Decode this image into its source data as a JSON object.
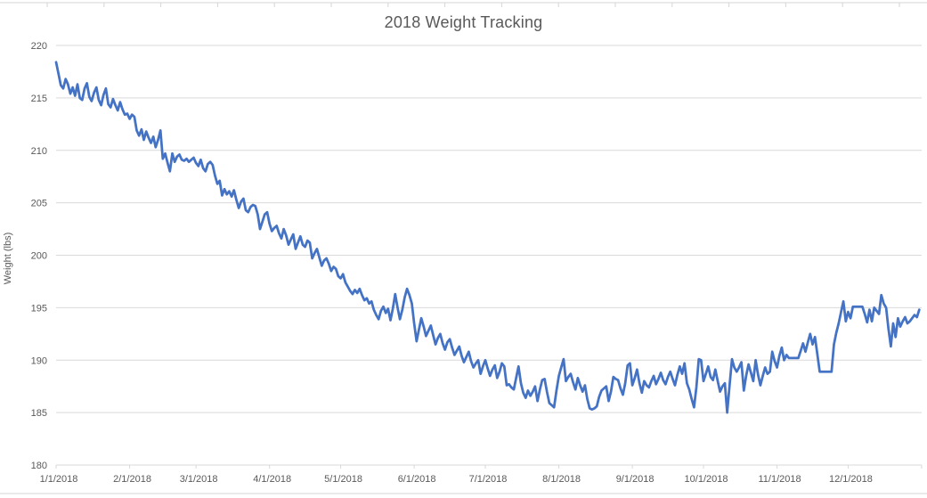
{
  "chart_data": {
    "type": "line",
    "title": "2018 Weight Tracking",
    "xlabel": "",
    "ylabel": "Weight (lbs)",
    "ylim": [
      180,
      220
    ],
    "y_tick_interval": 5,
    "y_tick_labels": [
      "220",
      "215",
      "210",
      "205",
      "200",
      "195",
      "190",
      "185",
      "180"
    ],
    "x_tick_labels": [
      "1/1/2018",
      "2/1/2018",
      "3/1/2018",
      "4/1/2018",
      "5/1/2018",
      "6/1/2018",
      "7/1/2018",
      "8/1/2018",
      "9/1/2018",
      "10/1/2018",
      "11/1/2018",
      "12/1/2018"
    ],
    "x_tick_days": [
      0,
      31,
      59,
      90,
      120,
      151,
      181,
      212,
      243,
      273,
      304,
      334
    ],
    "x_axis_total_days": 365,
    "grid": true,
    "legend": "none",
    "colors": {
      "series_line": "#4472C4",
      "gridline": "#D9D9D9",
      "axis_line": "#D9D9D9",
      "axis_text": "#595959",
      "worksheet_gridline": "#D6D6D6",
      "plot_background": "#FFFFFF"
    },
    "series": [
      {
        "name": "Weight",
        "start_date": "1/1/2018",
        "frequency": "daily",
        "daily_values": [
          218.4,
          217.3,
          216.2,
          215.9,
          216.8,
          216.3,
          215.4,
          216.0,
          215.2,
          216.3,
          215.0,
          214.8,
          215.9,
          216.4,
          215.1,
          214.7,
          215.5,
          216.0,
          214.8,
          214.3,
          215.3,
          215.9,
          214.4,
          214.1,
          214.9,
          214.3,
          213.8,
          214.6,
          213.9,
          213.4,
          213.5,
          213.0,
          213.4,
          213.2,
          211.9,
          211.4,
          212.0,
          211.0,
          211.8,
          211.2,
          210.7,
          211.3,
          210.3,
          211.0,
          211.9,
          209.2,
          209.7,
          208.8,
          208.0,
          209.7,
          208.9,
          209.4,
          209.6,
          209.1,
          209.0,
          209.2,
          208.9,
          209.1,
          209.3,
          208.8,
          208.5,
          209.1,
          208.3,
          208.0,
          208.7,
          208.9,
          208.6,
          207.6,
          206.8,
          207.1,
          205.7,
          206.3,
          205.8,
          206.1,
          205.6,
          206.2,
          205.3,
          204.5,
          205.1,
          205.4,
          204.3,
          204.1,
          204.6,
          204.8,
          204.7,
          203.9,
          202.5,
          203.2,
          203.9,
          204.1,
          203.0,
          202.3,
          202.6,
          202.8,
          202.1,
          201.6,
          202.5,
          201.9,
          201.0,
          201.5,
          202.0,
          200.6,
          201.2,
          201.8,
          201.0,
          200.8,
          201.4,
          201.2,
          199.7,
          200.2,
          200.6,
          199.8,
          199.0,
          199.5,
          199.7,
          199.2,
          198.5,
          198.9,
          198.7,
          198.0,
          197.8,
          198.2,
          197.4,
          197.0,
          196.6,
          196.3,
          196.7,
          196.4,
          196.8,
          196.2,
          195.7,
          195.9,
          195.4,
          195.6,
          194.8,
          194.3,
          193.9,
          194.7,
          195.1,
          194.5,
          194.9,
          193.8,
          194.9,
          196.3,
          195.0,
          193.9,
          194.8,
          196.0,
          196.8,
          196.2,
          195.4,
          193.5,
          191.8,
          192.9,
          194.0,
          193.2,
          192.3,
          192.8,
          193.3,
          192.4,
          191.5,
          192.1,
          192.5,
          191.6,
          191.0,
          191.7,
          192.0,
          191.2,
          190.5,
          190.9,
          191.3,
          190.4,
          189.8,
          190.3,
          190.8,
          189.9,
          189.3,
          189.7,
          190.0,
          188.7,
          189.4,
          190.0,
          189.2,
          188.5,
          189.1,
          189.5,
          188.3,
          188.9,
          189.7,
          189.4,
          187.6,
          187.7,
          187.4,
          187.2,
          188.3,
          189.4,
          187.8,
          186.9,
          186.4,
          187.1,
          186.6,
          187.0,
          187.5,
          186.1,
          187.2,
          188.1,
          188.2,
          187.0,
          185.9,
          185.7,
          185.5,
          187.1,
          188.5,
          189.3,
          190.1,
          188.0,
          188.4,
          188.7,
          187.9,
          187.2,
          188.3,
          187.6,
          187.0,
          187.6,
          186.3,
          185.4,
          185.3,
          185.4,
          185.6,
          186.5,
          187.1,
          187.3,
          187.5,
          186.1,
          187.0,
          188.4,
          188.2,
          188.1,
          187.3,
          186.7,
          187.8,
          189.5,
          189.7,
          187.6,
          188.3,
          189.1,
          187.8,
          186.9,
          188.0,
          187.6,
          187.4,
          188.0,
          188.5,
          187.7,
          188.2,
          188.8,
          188.1,
          187.7,
          188.4,
          188.9,
          188.2,
          187.6,
          188.6,
          189.4,
          188.7,
          189.7,
          187.8,
          187.2,
          186.3,
          185.5,
          187.4,
          190.1,
          190.0,
          188.0,
          188.7,
          189.4,
          188.4,
          188.1,
          189.1,
          188.0,
          187.0,
          187.5,
          187.8,
          185.0,
          187.6,
          190.1,
          189.3,
          188.9,
          189.3,
          189.8,
          187.1,
          188.5,
          189.6,
          188.8,
          188.0,
          190.0,
          188.6,
          187.6,
          188.5,
          189.3,
          188.7,
          188.9,
          190.8,
          189.9,
          189.3,
          190.4,
          191.2,
          190.0,
          190.5,
          190.2,
          190.2,
          190.2,
          190.2,
          190.2,
          190.9,
          191.6,
          190.8,
          191.7,
          192.5,
          191.5,
          192.2,
          190.6,
          188.9,
          188.9,
          188.9,
          188.9,
          188.9,
          188.9,
          191.5,
          192.6,
          193.5,
          194.6,
          195.6,
          193.7,
          194.6,
          194.0,
          195.1,
          195.1,
          195.1,
          195.1,
          195.1,
          194.4,
          193.6,
          194.8,
          193.7,
          195.0,
          194.7,
          194.4,
          196.2,
          195.4,
          195.0,
          193.0,
          191.3,
          193.5,
          192.2,
          194.0,
          193.2,
          193.7,
          194.1,
          193.5,
          193.7,
          194.0,
          194.3,
          194.1,
          194.8
        ]
      }
    ]
  }
}
